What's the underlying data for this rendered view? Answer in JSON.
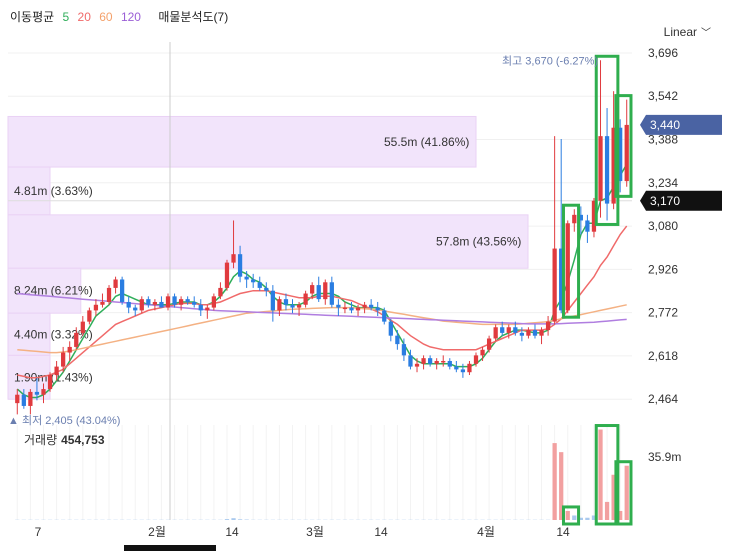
{
  "legend": {
    "title": "이동평균",
    "ma5": "5",
    "ma20": "20",
    "ma60": "60",
    "ma120": "120",
    "profile_label": "매물분석도(7)"
  },
  "scale_mode": "Linear",
  "volume_label": {
    "title": "거래량",
    "value": "454,753"
  },
  "colors": {
    "up": "#e03a3e",
    "down": "#2a7de1",
    "ma5": "#2fae5a",
    "ma20": "#f06a6a",
    "ma60": "#f4b183",
    "ma120": "#b07ee0",
    "profile": "#f2e4fb",
    "highlight": "#2fae4e",
    "current_tag": "#4a63a3",
    "prev_tag": "#111111"
  },
  "chart_data": {
    "type": "candlestick",
    "y_axis": {
      "ticks": [
        2464,
        2618,
        2772,
        2926,
        3080,
        3234,
        3388,
        3542,
        3696
      ],
      "tick_labels": [
        "2,464",
        "2,618",
        "2,772",
        "2,926",
        "3,080",
        "3,234",
        "3,388",
        "3,542",
        "3,696"
      ],
      "range": [
        2390,
        3735
      ]
    },
    "x_axis": {
      "labels": [
        "7",
        "2월",
        "14",
        "3월",
        "14",
        "4월",
        "14"
      ]
    },
    "price_tags": {
      "current": 3440,
      "current_label": "3,440",
      "marker": 3170,
      "marker_label": "3,170"
    },
    "high_annotation": {
      "text": "최고 3,670 (-6.27%)",
      "value": 3670
    },
    "low_annotation": {
      "text": "▲ 최저 2,405 (43.04%)",
      "value": 2405
    },
    "volume_profile": [
      {
        "low": 3290,
        "high": 3470,
        "share": 0.9,
        "label": "55.5m (41.86%)"
      },
      {
        "low": 3120,
        "high": 3290,
        "share": 0.07,
        "label": "4.81m (3.63%)"
      },
      {
        "low": 2930,
        "high": 3120,
        "share": 1.0,
        "label": "57.8m (43.56%)"
      },
      {
        "low": 2770,
        "high": 2930,
        "share": 0.14,
        "label": "8.24m (6.21%)"
      },
      {
        "low": 2620,
        "high": 2770,
        "share": 0.08,
        "label": "4.40m (3.32%)"
      },
      {
        "low": 2464,
        "high": 2620,
        "share": 0.03,
        "label": "1.90m (1.43%)"
      }
    ],
    "candles": [
      [
        2450,
        2500,
        2410,
        2480
      ],
      [
        2480,
        2500,
        2430,
        2440
      ],
      [
        2440,
        2500,
        2410,
        2490
      ],
      [
        2490,
        2540,
        2460,
        2480
      ],
      [
        2480,
        2520,
        2450,
        2500
      ],
      [
        2500,
        2560,
        2490,
        2550
      ],
      [
        2550,
        2600,
        2530,
        2580
      ],
      [
        2580,
        2650,
        2560,
        2630
      ],
      [
        2630,
        2670,
        2600,
        2650
      ],
      [
        2650,
        2720,
        2640,
        2700
      ],
      [
        2700,
        2760,
        2690,
        2740
      ],
      [
        2740,
        2790,
        2730,
        2780
      ],
      [
        2780,
        2820,
        2760,
        2800
      ],
      [
        2800,
        2840,
        2790,
        2810
      ],
      [
        2810,
        2870,
        2800,
        2860
      ],
      [
        2860,
        2900,
        2840,
        2890
      ],
      [
        2890,
        2900,
        2800,
        2810
      ],
      [
        2810,
        2830,
        2770,
        2790
      ],
      [
        2790,
        2800,
        2760,
        2780
      ],
      [
        2780,
        2830,
        2770,
        2820
      ],
      [
        2820,
        2830,
        2790,
        2800
      ],
      [
        2800,
        2820,
        2780,
        2810
      ],
      [
        2810,
        2830,
        2790,
        2790
      ],
      [
        2790,
        2840,
        2780,
        2830
      ],
      [
        2830,
        2840,
        2790,
        2800
      ],
      [
        2800,
        2830,
        2780,
        2820
      ],
      [
        2820,
        2830,
        2800,
        2810
      ],
      [
        2810,
        2830,
        2790,
        2800
      ],
      [
        2800,
        2820,
        2760,
        2780
      ],
      [
        2780,
        2800,
        2750,
        2790
      ],
      [
        2790,
        2840,
        2780,
        2830
      ],
      [
        2830,
        2880,
        2820,
        2860
      ],
      [
        2860,
        2960,
        2850,
        2950
      ],
      [
        2950,
        3100,
        2930,
        2980
      ],
      [
        2980,
        3010,
        2880,
        2900
      ],
      [
        2900,
        2920,
        2860,
        2890
      ],
      [
        2890,
        2910,
        2860,
        2880
      ],
      [
        2880,
        2900,
        2850,
        2860
      ],
      [
        2860,
        2880,
        2830,
        2850
      ],
      [
        2850,
        2870,
        2740,
        2780
      ],
      [
        2780,
        2830,
        2760,
        2820
      ],
      [
        2820,
        2840,
        2780,
        2800
      ],
      [
        2800,
        2820,
        2770,
        2790
      ],
      [
        2790,
        2810,
        2760,
        2800
      ],
      [
        2800,
        2850,
        2790,
        2840
      ],
      [
        2840,
        2880,
        2820,
        2870
      ],
      [
        2870,
        2900,
        2810,
        2820
      ],
      [
        2820,
        2890,
        2800,
        2880
      ],
      [
        2880,
        2900,
        2790,
        2800
      ],
      [
        2800,
        2820,
        2760,
        2790
      ],
      [
        2790,
        2810,
        2770,
        2790
      ],
      [
        2790,
        2810,
        2770,
        2780
      ],
      [
        2780,
        2800,
        2760,
        2790
      ],
      [
        2790,
        2810,
        2770,
        2800
      ],
      [
        2800,
        2820,
        2780,
        2790
      ],
      [
        2790,
        2810,
        2760,
        2780
      ],
      [
        2780,
        2790,
        2730,
        2740
      ],
      [
        2740,
        2750,
        2670,
        2690
      ],
      [
        2690,
        2710,
        2640,
        2660
      ],
      [
        2660,
        2680,
        2600,
        2620
      ],
      [
        2620,
        2640,
        2570,
        2580
      ],
      [
        2580,
        2610,
        2560,
        2590
      ],
      [
        2590,
        2620,
        2570,
        2610
      ],
      [
        2610,
        2620,
        2580,
        2590
      ],
      [
        2590,
        2610,
        2570,
        2600
      ],
      [
        2600,
        2620,
        2580,
        2600
      ],
      [
        2600,
        2610,
        2570,
        2580
      ],
      [
        2580,
        2600,
        2560,
        2570
      ],
      [
        2570,
        2590,
        2540,
        2560
      ],
      [
        2560,
        2600,
        2550,
        2590
      ],
      [
        2590,
        2630,
        2580,
        2620
      ],
      [
        2620,
        2650,
        2600,
        2640
      ],
      [
        2640,
        2690,
        2630,
        2680
      ],
      [
        2680,
        2730,
        2670,
        2720
      ],
      [
        2720,
        2740,
        2690,
        2700
      ],
      [
        2700,
        2730,
        2680,
        2720
      ],
      [
        2720,
        2740,
        2690,
        2700
      ],
      [
        2700,
        2720,
        2670,
        2690
      ],
      [
        2690,
        2720,
        2680,
        2710
      ],
      [
        2710,
        2730,
        2680,
        2690
      ],
      [
        2690,
        2720,
        2660,
        2710
      ],
      [
        2710,
        2760,
        2690,
        2740
      ],
      [
        2740,
        3400,
        2730,
        3000
      ],
      [
        3000,
        3390,
        2770,
        2780
      ],
      [
        2780,
        3100,
        2770,
        3090
      ],
      [
        3090,
        3140,
        3060,
        3120
      ],
      [
        3120,
        3150,
        3050,
        3100
      ],
      [
        3100,
        3120,
        3020,
        3060
      ],
      [
        3060,
        3180,
        3040,
        3170
      ],
      [
        3170,
        3670,
        3110,
        3400
      ],
      [
        3400,
        3500,
        3100,
        3160
      ],
      [
        3160,
        3560,
        3140,
        3430
      ],
      [
        3430,
        3460,
        3200,
        3240
      ],
      [
        3240,
        3530,
        3220,
        3440
      ]
    ],
    "ma_series": [
      {
        "name": "5",
        "values": [
          2500,
          2480,
          2470,
          2470,
          2480,
          2500,
          2530,
          2560,
          2600,
          2640,
          2680,
          2720,
          2760,
          2780,
          2800,
          2830,
          2840,
          2830,
          2820,
          2810,
          2800,
          2800,
          2800,
          2800,
          2805,
          2810,
          2810,
          2810,
          2800,
          2800,
          2810,
          2830,
          2860,
          2900,
          2920,
          2910,
          2890,
          2880,
          2860,
          2830,
          2810,
          2800,
          2800,
          2800,
          2810,
          2830,
          2840,
          2840,
          2840,
          2830,
          2810,
          2800,
          2790,
          2790,
          2790,
          2790,
          2780,
          2740,
          2700,
          2660,
          2620,
          2600,
          2590,
          2590,
          2590,
          2590,
          2590,
          2580,
          2580,
          2580,
          2590,
          2610,
          2640,
          2670,
          2690,
          2700,
          2710,
          2710,
          2705,
          2700,
          2700,
          2710,
          2780,
          2820,
          2880,
          2960,
          3050,
          3090,
          3090,
          3170,
          3180,
          3220,
          3260,
          3300
        ]
      },
      {
        "name": "20",
        "values": [
          2550,
          2545,
          2540,
          2540,
          2545,
          2550,
          2560,
          2570,
          2590,
          2610,
          2630,
          2650,
          2670,
          2690,
          2710,
          2730,
          2740,
          2750,
          2760,
          2770,
          2780,
          2785,
          2790,
          2795,
          2800,
          2805,
          2805,
          2805,
          2800,
          2800,
          2805,
          2810,
          2820,
          2830,
          2840,
          2845,
          2850,
          2850,
          2850,
          2845,
          2840,
          2835,
          2830,
          2825,
          2825,
          2825,
          2830,
          2830,
          2830,
          2825,
          2820,
          2815,
          2805,
          2795,
          2785,
          2775,
          2760,
          2745,
          2730,
          2710,
          2690,
          2675,
          2660,
          2650,
          2645,
          2640,
          2640,
          2640,
          2640,
          2640,
          2640,
          2650,
          2660,
          2670,
          2680,
          2690,
          2700,
          2710,
          2710,
          2710,
          2710,
          2715,
          2730,
          2750,
          2780,
          2810,
          2840,
          2870,
          2900,
          2940,
          2970,
          3010,
          3050,
          3080
        ]
      },
      {
        "name": "60",
        "values": [
          2640,
          2638,
          2636,
          2634,
          2632,
          2630,
          2630,
          2632,
          2635,
          2640,
          2645,
          2650,
          2655,
          2660,
          2665,
          2670,
          2675,
          2680,
          2685,
          2690,
          2695,
          2700,
          2705,
          2710,
          2715,
          2720,
          2725,
          2730,
          2735,
          2740,
          2745,
          2750,
          2755,
          2760,
          2765,
          2770,
          2772,
          2774,
          2776,
          2778,
          2780,
          2782,
          2784,
          2785,
          2786,
          2787,
          2788,
          2789,
          2790,
          2790,
          2790,
          2790,
          2788,
          2786,
          2784,
          2782,
          2778,
          2774,
          2770,
          2766,
          2762,
          2758,
          2754,
          2750,
          2746,
          2742,
          2740,
          2738,
          2736,
          2734,
          2732,
          2730,
          2730,
          2730,
          2730,
          2730,
          2730,
          2732,
          2734,
          2736,
          2738,
          2740,
          2745,
          2750,
          2755,
          2760,
          2765,
          2770,
          2775,
          2780,
          2785,
          2790,
          2795,
          2800
        ]
      },
      {
        "name": "120",
        "values": [
          2840,
          2838,
          2836,
          2834,
          2832,
          2830,
          2828,
          2826,
          2824,
          2822,
          2820,
          2818,
          2816,
          2814,
          2812,
          2810,
          2808,
          2806,
          2804,
          2802,
          2800,
          2798,
          2796,
          2794,
          2792,
          2790,
          2788,
          2786,
          2784,
          2782,
          2780,
          2779,
          2778,
          2777,
          2776,
          2775,
          2774,
          2773,
          2772,
          2771,
          2770,
          2769,
          2768,
          2767,
          2766,
          2765,
          2764,
          2763,
          2762,
          2761,
          2760,
          2759,
          2758,
          2757,
          2756,
          2755,
          2754,
          2753,
          2752,
          2751,
          2750,
          2749,
          2748,
          2747,
          2746,
          2745,
          2744,
          2743,
          2742,
          2741,
          2740,
          2739,
          2738,
          2737,
          2736,
          2735,
          2734,
          2733,
          2732,
          2732,
          2732,
          2732,
          2732,
          2733,
          2734,
          2735,
          2736,
          2737,
          2738,
          2740,
          2742,
          2744,
          2746,
          2748
        ]
      }
    ],
    "volume": {
      "axis_label": "35.9m",
      "axis_value": 35.9,
      "values": [
        0.1,
        0.1,
        0.1,
        0.1,
        0.1,
        0.1,
        0.1,
        0.1,
        0.1,
        0.1,
        0.1,
        0.1,
        0.1,
        0.1,
        0.1,
        0.1,
        0.1,
        0.1,
        0.1,
        0.1,
        0.1,
        0.1,
        0.1,
        0.1,
        0.1,
        0.1,
        0.1,
        0.1,
        0.1,
        0.1,
        0.1,
        0.1,
        0.4,
        0.8,
        0.3,
        0.2,
        0.1,
        0.1,
        0.1,
        0.1,
        0.1,
        0.1,
        0.1,
        0.1,
        0.1,
        0.1,
        0.1,
        0.1,
        0.1,
        0.1,
        0.1,
        0.1,
        0.1,
        0.1,
        0.1,
        0.1,
        0.1,
        0.1,
        0.1,
        0.1,
        0.1,
        0.1,
        0.1,
        0.1,
        0.1,
        0.1,
        0.1,
        0.1,
        0.1,
        0.1,
        0.1,
        0.1,
        0.1,
        0.1,
        0.1,
        0.1,
        0.1,
        0.1,
        0.1,
        0.1,
        0.1,
        0.1,
        34,
        30,
        4,
        2,
        1,
        1,
        2,
        40,
        8,
        20,
        4,
        24
      ]
    },
    "highlights": [
      [
        84,
        85
      ],
      [
        89,
        91
      ],
      [
        92,
        93
      ]
    ]
  }
}
